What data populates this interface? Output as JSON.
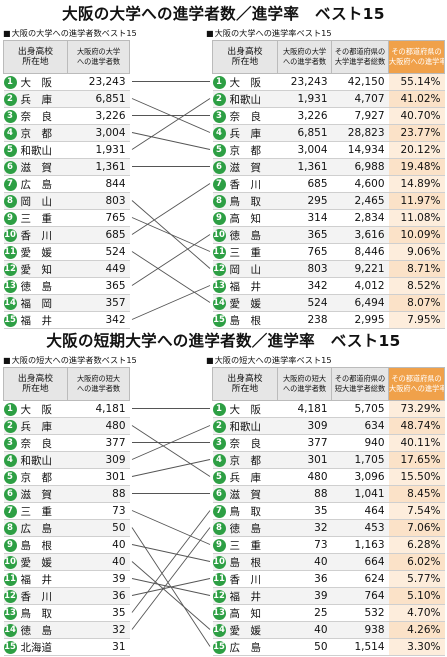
{
  "titles": {
    "university": "大阪の大学への進学者数／進学率　ベスト15",
    "junior_college": "大阪の短期大学への進学者数／進学率　ベスト15"
  },
  "university": {
    "left": {
      "caption": "大阪の大学への進学者数ベスト15",
      "headers": [
        "出身高校\n所在地",
        "大阪府の大学\nへの進学者数"
      ],
      "rows": [
        {
          "rank": "1",
          "pref": "大　阪",
          "val": "23,243"
        },
        {
          "rank": "2",
          "pref": "兵　庫",
          "val": "6,851"
        },
        {
          "rank": "3",
          "pref": "奈　良",
          "val": "3,226"
        },
        {
          "rank": "4",
          "pref": "京　都",
          "val": "3,004"
        },
        {
          "rank": "5",
          "pref": "和歌山",
          "val": "1,931"
        },
        {
          "rank": "6",
          "pref": "滋　賀",
          "val": "1,361"
        },
        {
          "rank": "7",
          "pref": "広　島",
          "val": "844"
        },
        {
          "rank": "8",
          "pref": "岡　山",
          "val": "803"
        },
        {
          "rank": "9",
          "pref": "三　重",
          "val": "765"
        },
        {
          "rank": "10",
          "pref": "香　川",
          "val": "685"
        },
        {
          "rank": "11",
          "pref": "愛　媛",
          "val": "524"
        },
        {
          "rank": "12",
          "pref": "愛　知",
          "val": "449"
        },
        {
          "rank": "13",
          "pref": "徳　島",
          "val": "365"
        },
        {
          "rank": "14",
          "pref": "福　岡",
          "val": "357"
        },
        {
          "rank": "15",
          "pref": "福　井",
          "val": "342"
        }
      ]
    },
    "right": {
      "caption": "大阪の大学への進学率ベスト15",
      "headers": [
        "出身高校\n所在地",
        "大阪府の大学\nへの進学者数",
        "その都道府県の\n大学進学者総数",
        "その都道府県の\n大阪府への進学率"
      ],
      "rows": [
        {
          "rank": "1",
          "pref": "大　阪",
          "a": "23,243",
          "b": "42,150",
          "c": "55.14%"
        },
        {
          "rank": "2",
          "pref": "和歌山",
          "a": "1,931",
          "b": "4,707",
          "c": "41.02%"
        },
        {
          "rank": "3",
          "pref": "奈　良",
          "a": "3,226",
          "b": "7,927",
          "c": "40.70%"
        },
        {
          "rank": "4",
          "pref": "兵　庫",
          "a": "6,851",
          "b": "28,823",
          "c": "23.77%"
        },
        {
          "rank": "5",
          "pref": "京　都",
          "a": "3,004",
          "b": "14,934",
          "c": "20.12%"
        },
        {
          "rank": "6",
          "pref": "滋　賀",
          "a": "1,361",
          "b": "6,988",
          "c": "19.48%"
        },
        {
          "rank": "7",
          "pref": "香　川",
          "a": "685",
          "b": "4,600",
          "c": "14.89%"
        },
        {
          "rank": "8",
          "pref": "鳥　取",
          "a": "295",
          "b": "2,465",
          "c": "11.97%"
        },
        {
          "rank": "9",
          "pref": "高　知",
          "a": "314",
          "b": "2,834",
          "c": "11.08%"
        },
        {
          "rank": "10",
          "pref": "徳　島",
          "a": "365",
          "b": "3,616",
          "c": "10.09%"
        },
        {
          "rank": "11",
          "pref": "三　重",
          "a": "765",
          "b": "8,446",
          "c": "9.06%"
        },
        {
          "rank": "12",
          "pref": "岡　山",
          "a": "803",
          "b": "9,221",
          "c": "8.71%"
        },
        {
          "rank": "13",
          "pref": "福　井",
          "a": "342",
          "b": "4,012",
          "c": "8.52%"
        },
        {
          "rank": "14",
          "pref": "愛　媛",
          "a": "524",
          "b": "6,494",
          "c": "8.07%"
        },
        {
          "rank": "15",
          "pref": "島　根",
          "a": "238",
          "b": "2,995",
          "c": "7.95%"
        }
      ]
    },
    "links": [
      [
        1,
        1
      ],
      [
        2,
        4
      ],
      [
        3,
        3
      ],
      [
        4,
        5
      ],
      [
        5,
        2
      ],
      [
        6,
        6
      ],
      [
        8,
        12
      ],
      [
        9,
        11
      ],
      [
        10,
        7
      ],
      [
        11,
        14
      ],
      [
        13,
        10
      ],
      [
        15,
        13
      ]
    ]
  },
  "junior_college": {
    "left": {
      "caption": "大阪の短大への進学者数ベスト15",
      "headers": [
        "出身高校\n所在地",
        "大阪府の短大\nへの進学者数"
      ],
      "rows": [
        {
          "rank": "1",
          "pref": "大　阪",
          "val": "4,181"
        },
        {
          "rank": "2",
          "pref": "兵　庫",
          "val": "480"
        },
        {
          "rank": "3",
          "pref": "奈　良",
          "val": "377"
        },
        {
          "rank": "4",
          "pref": "和歌山",
          "val": "309"
        },
        {
          "rank": "5",
          "pref": "京　都",
          "val": "301"
        },
        {
          "rank": "6",
          "pref": "滋　賀",
          "val": "88"
        },
        {
          "rank": "7",
          "pref": "三　重",
          "val": "73"
        },
        {
          "rank": "8",
          "pref": "広　島",
          "val": "50"
        },
        {
          "rank": "9",
          "pref": "島　根",
          "val": "40"
        },
        {
          "rank": "10",
          "pref": "愛　媛",
          "val": "40"
        },
        {
          "rank": "11",
          "pref": "福　井",
          "val": "39"
        },
        {
          "rank": "12",
          "pref": "香　川",
          "val": "36"
        },
        {
          "rank": "13",
          "pref": "鳥　取",
          "val": "35"
        },
        {
          "rank": "14",
          "pref": "徳　島",
          "val": "32"
        },
        {
          "rank": "15",
          "pref": "北海道",
          "val": "31"
        }
      ]
    },
    "right": {
      "caption": "大阪の短大への進学率ベスト15",
      "headers": [
        "出身高校\n所在地",
        "大阪府の短大\nへの進学者数",
        "その都道府県の\n短大進学者総数",
        "その都道府県の\n大阪府への進学率"
      ],
      "rows": [
        {
          "rank": "1",
          "pref": "大　阪",
          "a": "4,181",
          "b": "5,705",
          "c": "73.29%"
        },
        {
          "rank": "2",
          "pref": "和歌山",
          "a": "309",
          "b": "634",
          "c": "48.74%"
        },
        {
          "rank": "3",
          "pref": "奈　良",
          "a": "377",
          "b": "940",
          "c": "40.11%"
        },
        {
          "rank": "4",
          "pref": "京　都",
          "a": "301",
          "b": "1,705",
          "c": "17.65%"
        },
        {
          "rank": "5",
          "pref": "兵　庫",
          "a": "480",
          "b": "3,096",
          "c": "15.50%"
        },
        {
          "rank": "6",
          "pref": "滋　賀",
          "a": "88",
          "b": "1,041",
          "c": "8.45%"
        },
        {
          "rank": "7",
          "pref": "鳥　取",
          "a": "35",
          "b": "464",
          "c": "7.54%"
        },
        {
          "rank": "8",
          "pref": "徳　島",
          "a": "32",
          "b": "453",
          "c": "7.06%"
        },
        {
          "rank": "9",
          "pref": "三　重",
          "a": "73",
          "b": "1,163",
          "c": "6.28%"
        },
        {
          "rank": "10",
          "pref": "島　根",
          "a": "40",
          "b": "664",
          "c": "6.02%"
        },
        {
          "rank": "11",
          "pref": "香　川",
          "a": "36",
          "b": "624",
          "c": "5.77%"
        },
        {
          "rank": "12",
          "pref": "福　井",
          "a": "39",
          "b": "764",
          "c": "5.10%"
        },
        {
          "rank": "13",
          "pref": "高　知",
          "a": "25",
          "b": "532",
          "c": "4.70%"
        },
        {
          "rank": "14",
          "pref": "愛　媛",
          "a": "40",
          "b": "938",
          "c": "4.26%"
        },
        {
          "rank": "15",
          "pref": "広　島",
          "a": "50",
          "b": "1,514",
          "c": "3.30%"
        }
      ]
    },
    "links": [
      [
        1,
        1
      ],
      [
        2,
        5
      ],
      [
        3,
        3
      ],
      [
        4,
        2
      ],
      [
        5,
        4
      ],
      [
        6,
        6
      ],
      [
        7,
        9
      ],
      [
        8,
        15
      ],
      [
        9,
        10
      ],
      [
        10,
        14
      ],
      [
        11,
        12
      ],
      [
        12,
        11
      ],
      [
        13,
        7
      ],
      [
        14,
        8
      ]
    ]
  },
  "colors": {
    "rank_circle": "#2d9f44",
    "highlight_header": "#f0a14a",
    "line": "#555555"
  }
}
